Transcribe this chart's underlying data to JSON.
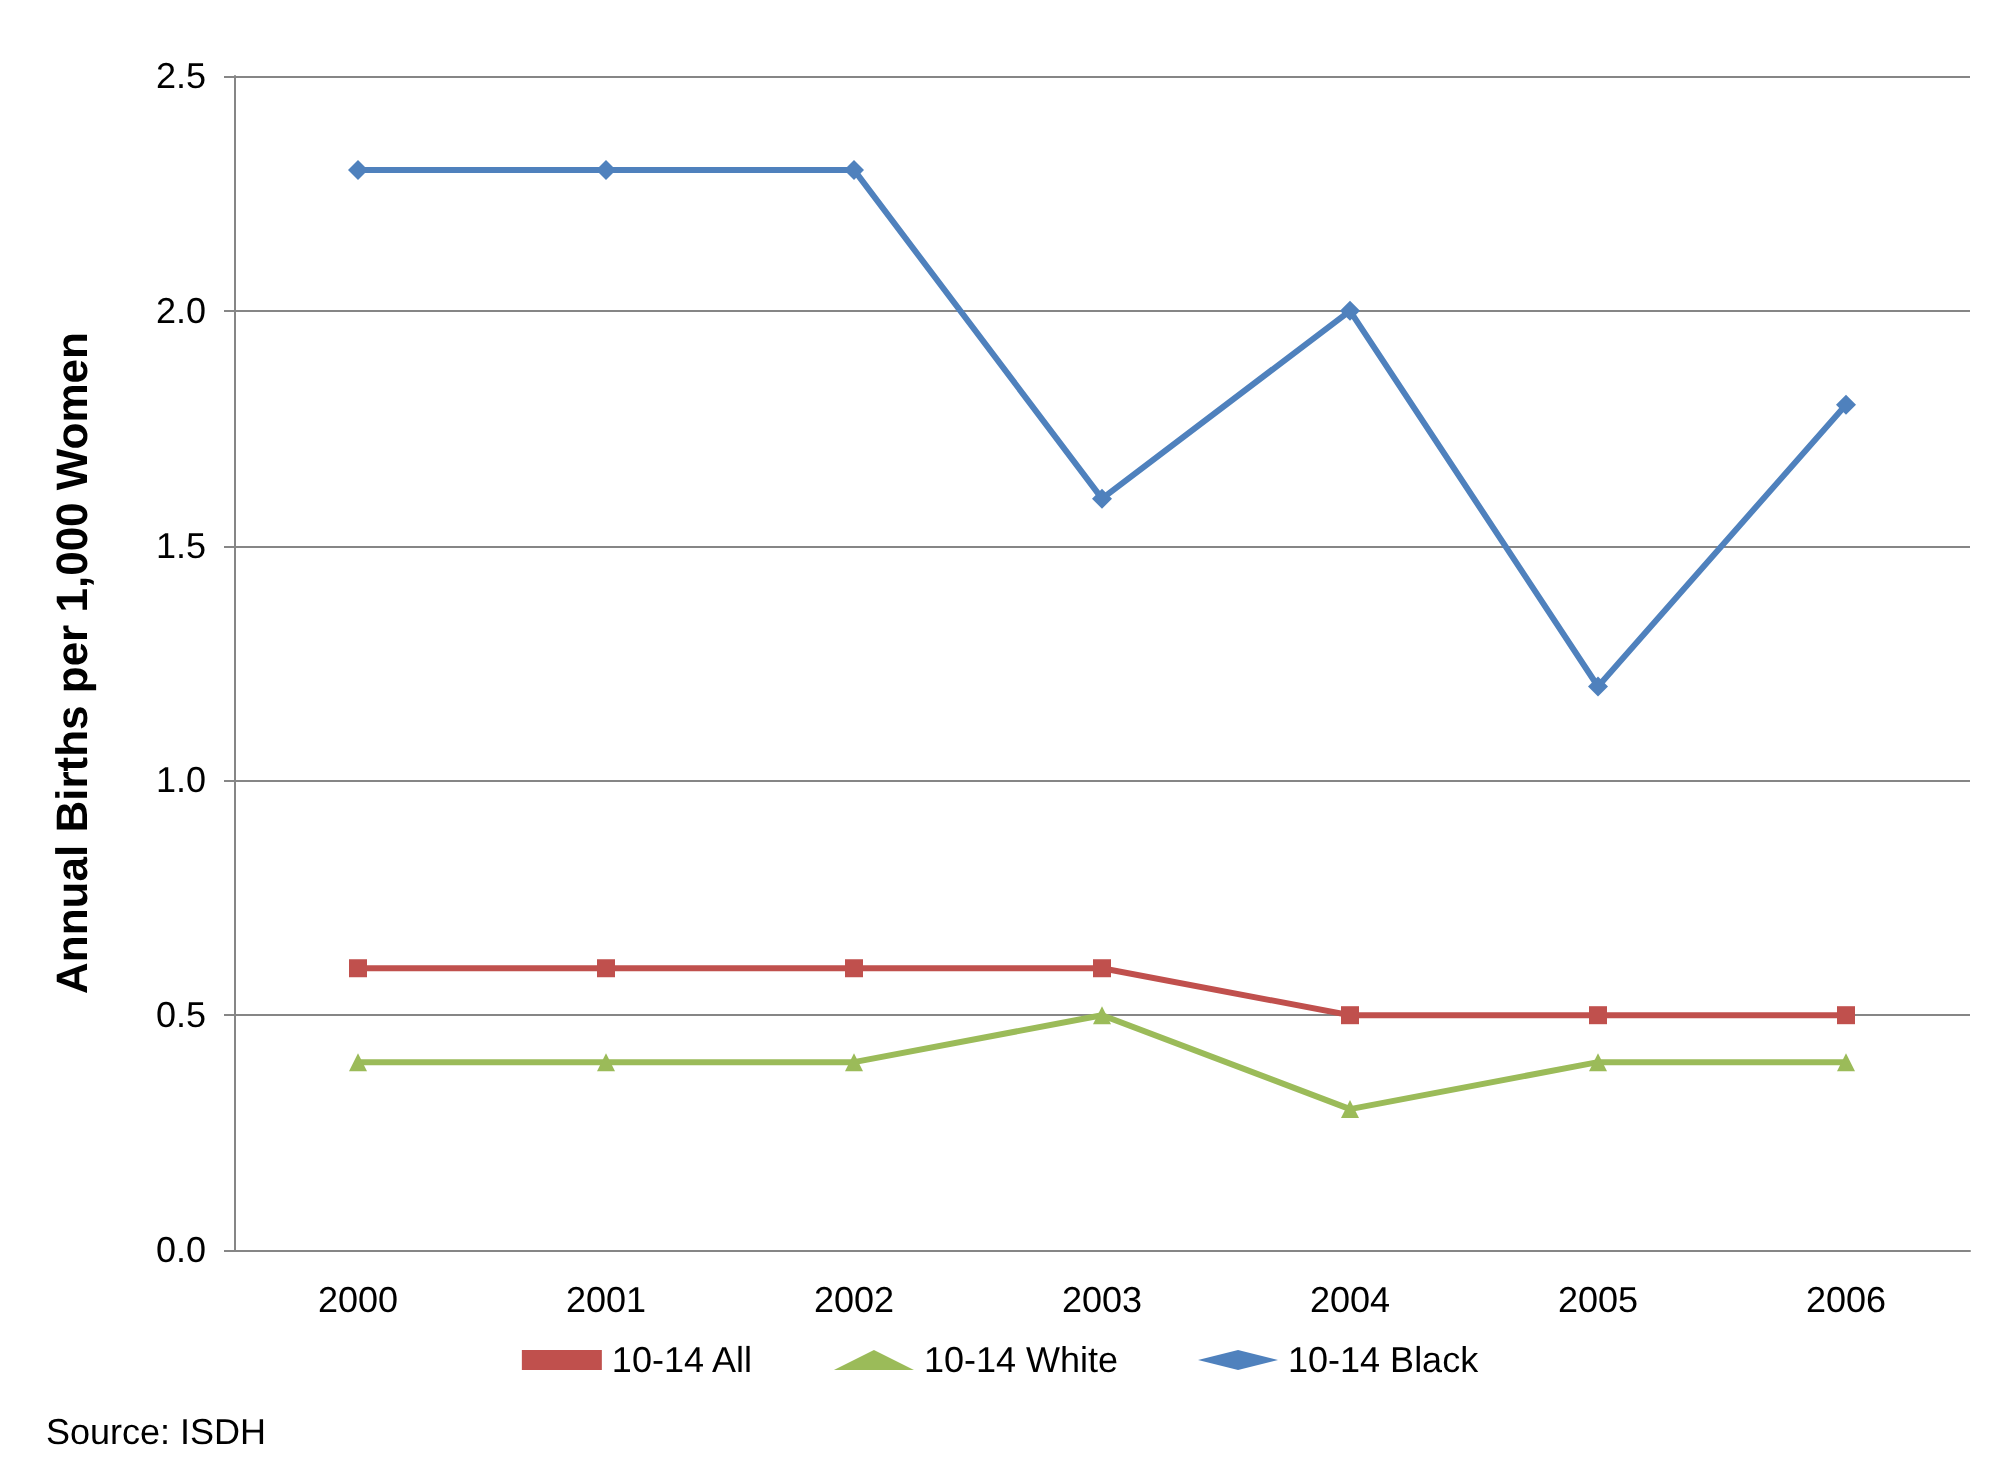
{
  "chart_data": {
    "type": "line",
    "ylabel": "Annual Births per 1,000 Women",
    "categories": [
      "2000",
      "2001",
      "2002",
      "2003",
      "2004",
      "2005",
      "2006"
    ],
    "series": [
      {
        "name": "10-14 All",
        "color": "#c0504d",
        "marker": "square",
        "values": [
          0.6,
          0.6,
          0.6,
          0.6,
          0.5,
          0.5,
          0.5
        ]
      },
      {
        "name": "10-14 White",
        "color": "#9bbb59",
        "marker": "triangle",
        "values": [
          0.4,
          0.4,
          0.4,
          0.5,
          0.3,
          0.4,
          0.4
        ]
      },
      {
        "name": "10-14 Black",
        "color": "#4f81bd",
        "marker": "diamond",
        "values": [
          2.3,
          2.3,
          2.3,
          1.6,
          2.0,
          1.2,
          1.8
        ]
      }
    ],
    "ylim": [
      0,
      2.5
    ],
    "yticks": [
      {
        "value": 0,
        "label": "0.0"
      },
      0.5,
      {
        "value": 1,
        "label": "1.0"
      },
      1.5,
      {
        "value": 2,
        "label": "2.0"
      },
      2.5
    ],
    "grid": "y",
    "legend": "bottom",
    "annotations": [
      "Source: ISDH"
    ]
  }
}
